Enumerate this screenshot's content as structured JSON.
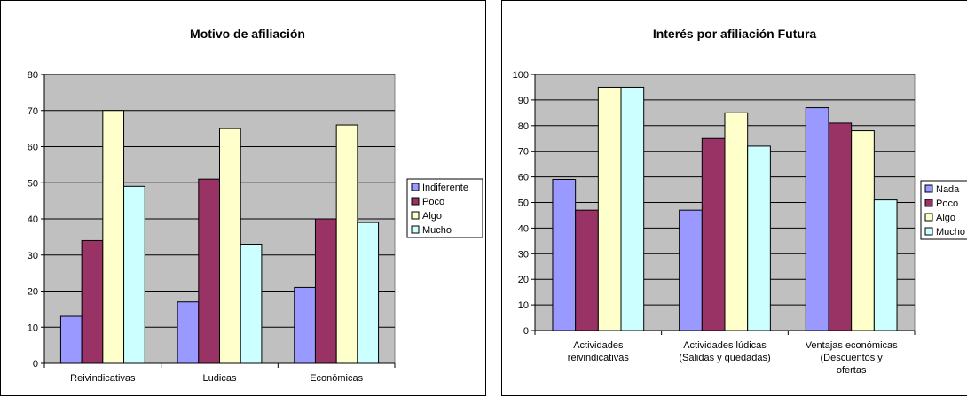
{
  "chart_data": [
    {
      "type": "bar",
      "title": "Motivo de afiliación",
      "categories": [
        "Reivindicativas",
        "Ludicas",
        "Económicas"
      ],
      "series": [
        {
          "name": "Indiferente",
          "values": [
            13,
            17,
            21
          ]
        },
        {
          "name": "Poco",
          "values": [
            34,
            51,
            40
          ]
        },
        {
          "name": "Algo",
          "values": [
            70,
            65,
            66
          ]
        },
        {
          "name": "Mucho",
          "values": [
            49,
            33,
            39
          ]
        }
      ],
      "ylim": [
        0,
        80
      ],
      "yticks": [
        0,
        10,
        20,
        30,
        40,
        50,
        60,
        70,
        80
      ],
      "grid": true,
      "legend_position": "right"
    },
    {
      "type": "bar",
      "title": "Interés por afiliación Futura",
      "categories": [
        [
          "Actividades",
          "reivindicativas"
        ],
        [
          "Actividades lúdicas",
          "(Salidas y quedadas)"
        ],
        [
          "Ventajas económicas",
          "(Descuentos y",
          "ofertas"
        ]
      ],
      "series": [
        {
          "name": "Nada",
          "values": [
            59,
            47,
            87
          ]
        },
        {
          "name": "Poco",
          "values": [
            47,
            75,
            81
          ]
        },
        {
          "name": "Algo",
          "values": [
            95,
            85,
            78
          ]
        },
        {
          "name": "Mucho",
          "values": [
            95,
            72,
            51
          ]
        }
      ],
      "ylim": [
        0,
        100
      ],
      "yticks": [
        0,
        10,
        20,
        30,
        40,
        50,
        60,
        70,
        80,
        90,
        100
      ],
      "grid": true,
      "legend_position": "right"
    }
  ],
  "colors": {
    "plot_bg": "#c0c0c0",
    "series": [
      "#9999ff",
      "#993366",
      "#ffffcc",
      "#ccffff"
    ]
  }
}
